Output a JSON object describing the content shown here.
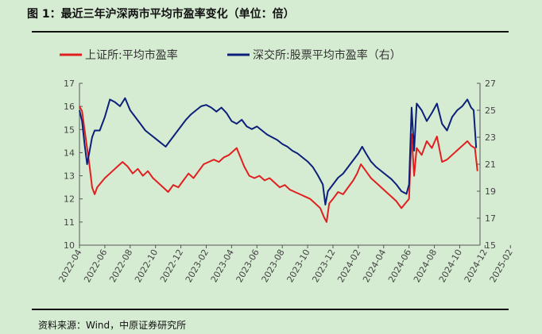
{
  "header": {
    "title": "图 1：最近三年沪深两市平均市盈率变化（单位：倍）"
  },
  "footer": {
    "source": "资料来源：Wind，中原证券研究所"
  },
  "colors": {
    "sh": "#e02020",
    "sz": "#0c1f7a"
  },
  "chart_data": {
    "type": "line",
    "title": "",
    "xlabel": "",
    "ylabel": "",
    "ylim_left": [
      10,
      17
    ],
    "ylim_right": [
      15,
      27
    ],
    "y_left_ticks": [
      "10",
      "11",
      "12",
      "13",
      "14",
      "15",
      "16",
      "17"
    ],
    "y_right_ticks": [
      "15",
      "17",
      "19",
      "21",
      "23",
      "25",
      "27"
    ],
    "x_tick_labels": [
      "2022-04",
      "2022-06",
      "2022-08",
      "2022-10",
      "2022-12",
      "2023-02",
      "2023-04",
      "2023-06",
      "2023-08",
      "2023-10",
      "2023-12",
      "2024-02",
      "2024-04",
      "2024-06",
      "2024-08",
      "2024-10",
      "2024-12",
      "2025-02"
    ],
    "grid": false,
    "legend_position": "top",
    "series": [
      {
        "name": "上证所:平均市盈率",
        "axis": "left",
        "color_key": "sh",
        "points": [
          [
            0.0,
            16.0
          ],
          [
            0.1,
            15.8
          ],
          [
            0.2,
            15.0
          ],
          [
            0.3,
            14.2
          ],
          [
            0.4,
            13.4
          ],
          [
            0.5,
            12.5
          ],
          [
            0.6,
            12.2
          ],
          [
            0.7,
            12.5
          ],
          [
            1.0,
            12.9
          ],
          [
            1.3,
            13.2
          ],
          [
            1.5,
            13.4
          ],
          [
            1.7,
            13.6
          ],
          [
            1.9,
            13.4
          ],
          [
            2.1,
            13.1
          ],
          [
            2.3,
            13.3
          ],
          [
            2.5,
            13.0
          ],
          [
            2.7,
            13.2
          ],
          [
            2.9,
            12.9
          ],
          [
            3.0,
            12.8
          ],
          [
            3.2,
            12.6
          ],
          [
            3.4,
            12.4
          ],
          [
            3.5,
            12.3
          ],
          [
            3.7,
            12.6
          ],
          [
            3.9,
            12.5
          ],
          [
            4.1,
            12.8
          ],
          [
            4.3,
            13.1
          ],
          [
            4.5,
            12.9
          ],
          [
            4.7,
            13.2
          ],
          [
            4.9,
            13.5
          ],
          [
            5.1,
            13.6
          ],
          [
            5.3,
            13.7
          ],
          [
            5.5,
            13.6
          ],
          [
            5.7,
            13.8
          ],
          [
            5.9,
            13.9
          ],
          [
            6.1,
            14.1
          ],
          [
            6.2,
            14.2
          ],
          [
            6.35,
            13.8
          ],
          [
            6.5,
            13.4
          ],
          [
            6.7,
            13.0
          ],
          [
            6.9,
            12.9
          ],
          [
            7.1,
            13.0
          ],
          [
            7.3,
            12.8
          ],
          [
            7.5,
            12.9
          ],
          [
            7.7,
            12.7
          ],
          [
            7.9,
            12.5
          ],
          [
            8.1,
            12.6
          ],
          [
            8.3,
            12.4
          ],
          [
            8.5,
            12.3
          ],
          [
            8.7,
            12.2
          ],
          [
            8.9,
            12.1
          ],
          [
            9.1,
            12.0
          ],
          [
            9.3,
            11.8
          ],
          [
            9.5,
            11.6
          ],
          [
            9.65,
            11.2
          ],
          [
            9.75,
            11.0
          ],
          [
            9.85,
            11.8
          ],
          [
            10.0,
            12.0
          ],
          [
            10.2,
            12.3
          ],
          [
            10.4,
            12.2
          ],
          [
            10.6,
            12.5
          ],
          [
            10.8,
            12.8
          ],
          [
            10.95,
            13.1
          ],
          [
            11.1,
            13.5
          ],
          [
            11.3,
            13.2
          ],
          [
            11.5,
            12.9
          ],
          [
            11.7,
            12.7
          ],
          [
            11.9,
            12.5
          ],
          [
            12.1,
            12.3
          ],
          [
            12.3,
            12.1
          ],
          [
            12.5,
            11.9
          ],
          [
            12.7,
            11.6
          ],
          [
            12.85,
            11.8
          ],
          [
            13.0,
            12.0
          ],
          [
            13.1,
            14.8
          ],
          [
            13.2,
            13.0
          ],
          [
            13.3,
            14.2
          ],
          [
            13.5,
            13.9
          ],
          [
            13.7,
            14.5
          ],
          [
            13.9,
            14.2
          ],
          [
            14.1,
            14.7
          ],
          [
            14.3,
            13.6
          ],
          [
            14.5,
            13.7
          ],
          [
            14.7,
            13.9
          ],
          [
            14.9,
            14.1
          ],
          [
            15.1,
            14.3
          ],
          [
            15.3,
            14.5
          ],
          [
            15.45,
            14.3
          ],
          [
            15.6,
            14.2
          ],
          [
            15.7,
            13.2
          ]
        ]
      },
      {
        "name": "深交所:股票平均市盈率（右）",
        "axis": "right",
        "color_key": "sz",
        "points": [
          [
            0.0,
            25.0
          ],
          [
            0.1,
            24.2
          ],
          [
            0.2,
            22.5
          ],
          [
            0.3,
            21.0
          ],
          [
            0.4,
            22.0
          ],
          [
            0.5,
            23.0
          ],
          [
            0.6,
            23.5
          ],
          [
            0.8,
            23.5
          ],
          [
            1.0,
            24.5
          ],
          [
            1.2,
            25.8
          ],
          [
            1.4,
            25.6
          ],
          [
            1.6,
            25.3
          ],
          [
            1.8,
            25.9
          ],
          [
            2.0,
            25.0
          ],
          [
            2.2,
            24.5
          ],
          [
            2.4,
            24.0
          ],
          [
            2.6,
            23.5
          ],
          [
            2.8,
            23.2
          ],
          [
            3.0,
            22.9
          ],
          [
            3.2,
            22.6
          ],
          [
            3.4,
            22.3
          ],
          [
            3.6,
            22.8
          ],
          [
            3.8,
            23.3
          ],
          [
            4.0,
            23.8
          ],
          [
            4.2,
            24.3
          ],
          [
            4.4,
            24.7
          ],
          [
            4.6,
            25.0
          ],
          [
            4.8,
            25.3
          ],
          [
            5.0,
            25.4
          ],
          [
            5.2,
            25.2
          ],
          [
            5.4,
            24.9
          ],
          [
            5.6,
            25.2
          ],
          [
            5.8,
            24.8
          ],
          [
            6.0,
            24.2
          ],
          [
            6.2,
            24.0
          ],
          [
            6.4,
            24.3
          ],
          [
            6.6,
            23.8
          ],
          [
            6.8,
            23.6
          ],
          [
            7.0,
            23.8
          ],
          [
            7.2,
            23.5
          ],
          [
            7.4,
            23.2
          ],
          [
            7.6,
            23.0
          ],
          [
            7.8,
            22.8
          ],
          [
            8.0,
            22.5
          ],
          [
            8.2,
            22.3
          ],
          [
            8.4,
            22.0
          ],
          [
            8.6,
            21.8
          ],
          [
            8.8,
            21.5
          ],
          [
            9.0,
            21.2
          ],
          [
            9.2,
            20.8
          ],
          [
            9.4,
            20.2
          ],
          [
            9.6,
            19.5
          ],
          [
            9.7,
            18.0
          ],
          [
            9.8,
            19.0
          ],
          [
            10.0,
            19.5
          ],
          [
            10.2,
            20.0
          ],
          [
            10.4,
            20.3
          ],
          [
            10.6,
            20.8
          ],
          [
            10.8,
            21.3
          ],
          [
            11.0,
            21.8
          ],
          [
            11.15,
            22.3
          ],
          [
            11.3,
            21.8
          ],
          [
            11.5,
            21.2
          ],
          [
            11.7,
            20.8
          ],
          [
            11.9,
            20.5
          ],
          [
            12.1,
            20.2
          ],
          [
            12.3,
            19.9
          ],
          [
            12.5,
            19.5
          ],
          [
            12.7,
            19.0
          ],
          [
            12.9,
            18.8
          ],
          [
            13.0,
            19.5
          ],
          [
            13.1,
            25.2
          ],
          [
            13.2,
            22.0
          ],
          [
            13.3,
            25.5
          ],
          [
            13.5,
            25.0
          ],
          [
            13.7,
            24.2
          ],
          [
            13.9,
            24.8
          ],
          [
            14.1,
            25.5
          ],
          [
            14.3,
            24.0
          ],
          [
            14.5,
            23.5
          ],
          [
            14.7,
            24.5
          ],
          [
            14.9,
            25.0
          ],
          [
            15.1,
            25.3
          ],
          [
            15.3,
            25.8
          ],
          [
            15.45,
            25.2
          ],
          [
            15.55,
            25.0
          ],
          [
            15.65,
            22.2
          ]
        ]
      }
    ]
  }
}
